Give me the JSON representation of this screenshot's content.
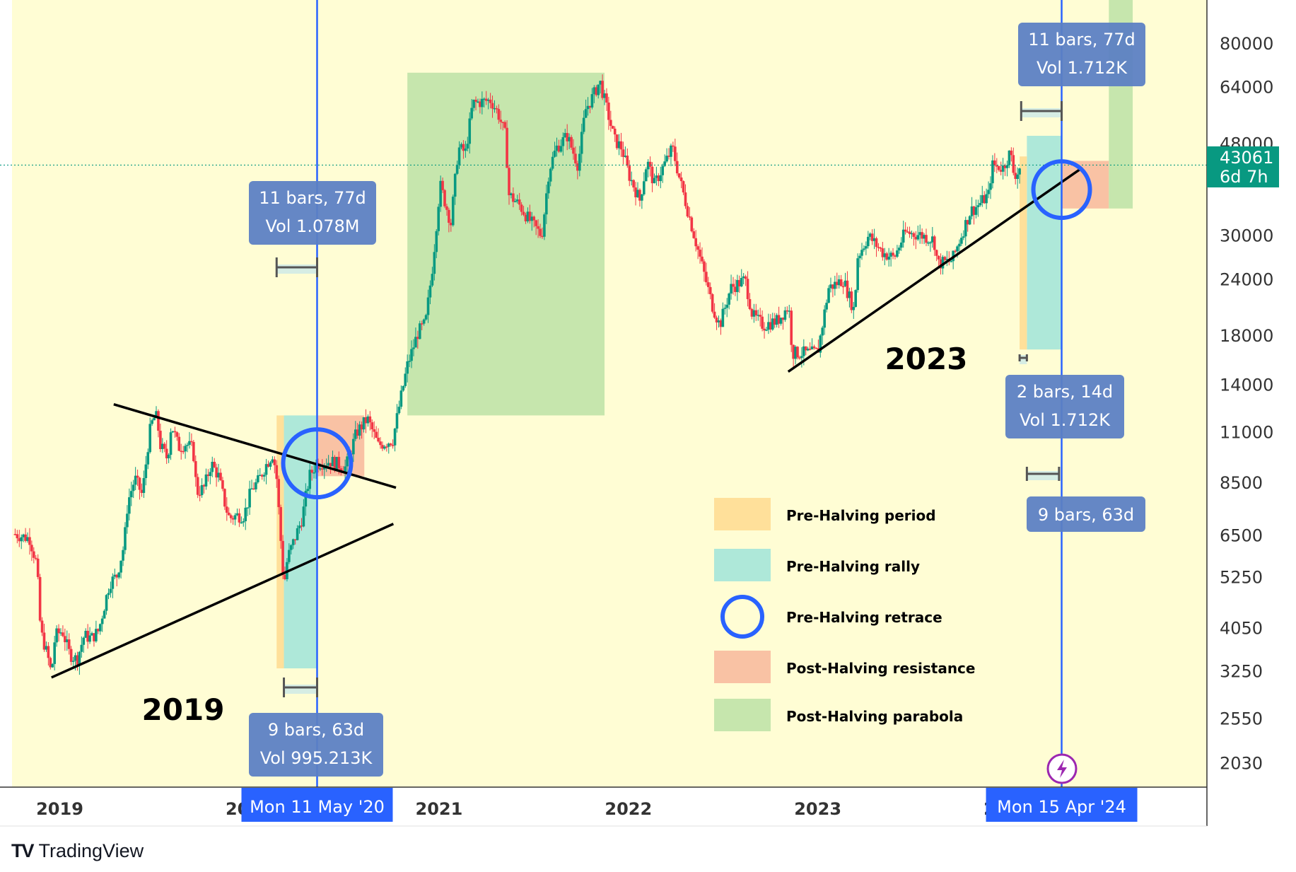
{
  "chart_data": {
    "type": "candlestick",
    "title": "",
    "subtitle": "",
    "xlabel": "",
    "ylabel": "",
    "y_scale": "log",
    "ylim": [
      1800,
      100000
    ],
    "xlim": [
      "2018-10-01",
      "2025-01-20"
    ],
    "grid": false,
    "background_color": "#fffdd4",
    "x_ticks": [
      "2019",
      "2020",
      "2021",
      "2022",
      "2023",
      "2024"
    ],
    "x_tick_dates": [
      "2019-01-01",
      "2020-01-01",
      "2021-01-01",
      "2022-01-01",
      "2023-01-01",
      "2024-01-01"
    ],
    "y_ticks": [
      2030,
      2550,
      3250,
      4050,
      5250,
      6500,
      8500,
      11000,
      14000,
      18000,
      24000,
      30000,
      48000,
      64000,
      80000
    ],
    "y_tick_labels": [
      "2030",
      "2550",
      "3250",
      "4050",
      "5250",
      "6500",
      "8500",
      "11000",
      "14000",
      "18000",
      "24000",
      "30000",
      "48000",
      "64000",
      "80000"
    ],
    "current_price": {
      "value": "43061",
      "countdown": "6d 7h",
      "color": "#089981"
    },
    "up_color": "#089981",
    "down_color": "#f23645",
    "weekly_close": [
      [
        "2018-10-07",
        6550
      ],
      [
        "2018-11-04",
        6400
      ],
      [
        "2018-11-18",
        5600
      ],
      [
        "2018-11-25",
        4000
      ],
      [
        "2018-12-09",
        3500
      ],
      [
        "2018-12-16",
        3200
      ],
      [
        "2018-12-23",
        3900
      ],
      [
        "2019-01-06",
        4000
      ],
      [
        "2019-01-20",
        3550
      ],
      [
        "2019-02-03",
        3450
      ],
      [
        "2019-02-17",
        3900
      ],
      [
        "2019-03-03",
        3850
      ],
      [
        "2019-03-17",
        4000
      ],
      [
        "2019-04-07",
        5100
      ],
      [
        "2019-04-21",
        5300
      ],
      [
        "2019-05-05",
        6200
      ],
      [
        "2019-05-12",
        7700
      ],
      [
        "2019-05-26",
        8700
      ],
      [
        "2019-06-09",
        8000
      ],
      [
        "2019-06-23",
        11000
      ],
      [
        "2019-06-30",
        11800
      ],
      [
        "2019-07-07",
        11900
      ],
      [
        "2019-07-14",
        10300
      ],
      [
        "2019-07-28",
        9600
      ],
      [
        "2019-08-04",
        11500
      ],
      [
        "2019-08-18",
        10200
      ],
      [
        "2019-09-01",
        10400
      ],
      [
        "2019-09-15",
        10100
      ],
      [
        "2019-09-22",
        8100
      ],
      [
        "2019-10-06",
        8300
      ],
      [
        "2019-10-20",
        9400
      ],
      [
        "2019-11-03",
        8800
      ],
      [
        "2019-11-17",
        7500
      ],
      [
        "2019-11-24",
        7100
      ],
      [
        "2019-12-08",
        7200
      ],
      [
        "2019-12-22",
        7200
      ],
      [
        "2020-01-05",
        8200
      ],
      [
        "2020-01-19",
        8600
      ],
      [
        "2020-02-02",
        9300
      ],
      [
        "2020-02-16",
        9900
      ],
      [
        "2020-02-23",
        8700
      ],
      [
        "2020-03-08",
        5000
      ],
      [
        "2020-03-15",
        5800
      ],
      [
        "2020-03-29",
        6400
      ],
      [
        "2020-04-12",
        7100
      ],
      [
        "2020-04-26",
        8800
      ],
      [
        "2020-05-10",
        9400
      ],
      [
        "2020-06-07",
        9500
      ],
      [
        "2020-07-05",
        9200
      ],
      [
        "2020-07-26",
        11000
      ],
      [
        "2020-08-16",
        11800
      ],
      [
        "2020-09-06",
        10300
      ],
      [
        "2020-10-04",
        10600
      ],
      [
        "2020-10-18",
        12900
      ],
      [
        "2020-11-01",
        15500
      ],
      [
        "2020-11-22",
        18400
      ],
      [
        "2020-12-06",
        19200
      ],
      [
        "2020-12-20",
        26000
      ],
      [
        "2021-01-03",
        39000
      ],
      [
        "2021-01-24",
        32000
      ],
      [
        "2021-02-07",
        47000
      ],
      [
        "2021-02-21",
        46000
      ],
      [
        "2021-03-07",
        59000
      ],
      [
        "2021-04-11",
        60000
      ],
      [
        "2021-04-25",
        56000
      ],
      [
        "2021-05-09",
        50000
      ],
      [
        "2021-05-16",
        37000
      ],
      [
        "2021-06-06",
        35000
      ],
      [
        "2021-06-20",
        33000
      ],
      [
        "2021-07-18",
        30000
      ],
      [
        "2021-08-01",
        42000
      ],
      [
        "2021-08-15",
        47000
      ],
      [
        "2021-09-05",
        50000
      ],
      [
        "2021-09-26",
        43000
      ],
      [
        "2021-10-10",
        57000
      ],
      [
        "2021-10-24",
        61000
      ],
      [
        "2021-11-07",
        66000
      ],
      [
        "2021-11-21",
        57000
      ],
      [
        "2021-12-05",
        49000
      ],
      [
        "2021-12-19",
        47000
      ],
      [
        "2022-01-02",
        41000
      ],
      [
        "2022-01-23",
        36000
      ],
      [
        "2022-02-06",
        44000
      ],
      [
        "2022-02-20",
        39000
      ],
      [
        "2022-03-27",
        47000
      ],
      [
        "2022-04-10",
        40000
      ],
      [
        "2022-05-08",
        30000
      ],
      [
        "2022-06-12",
        21000
      ],
      [
        "2022-06-26",
        19000
      ],
      [
        "2022-07-17",
        23000
      ],
      [
        "2022-08-14",
        24000
      ],
      [
        "2022-08-28",
        20000
      ],
      [
        "2022-09-18",
        19000
      ],
      [
        "2022-10-16",
        19500
      ],
      [
        "2022-11-06",
        21000
      ],
      [
        "2022-11-13",
        16500
      ],
      [
        "2022-12-18",
        16500
      ],
      [
        "2023-01-01",
        16600
      ],
      [
        "2023-01-22",
        23000
      ],
      [
        "2023-02-19",
        24000
      ],
      [
        "2023-03-12",
        20500
      ],
      [
        "2023-03-19",
        27000
      ],
      [
        "2023-04-09",
        30000
      ],
      [
        "2023-05-07",
        27500
      ],
      [
        "2023-05-28",
        26800
      ],
      [
        "2023-06-18",
        30500
      ],
      [
        "2023-07-16",
        30200
      ],
      [
        "2023-08-13",
        29400
      ],
      [
        "2023-08-20",
        26000
      ],
      [
        "2023-09-17",
        26500
      ],
      [
        "2023-10-22",
        34000
      ],
      [
        "2023-11-05",
        35000
      ],
      [
        "2023-11-26",
        37000
      ],
      [
        "2023-12-03",
        43000
      ],
      [
        "2023-12-24",
        42500
      ],
      [
        "2024-01-07",
        46000
      ],
      [
        "2024-01-14",
        41000
      ],
      [
        "2024-01-21",
        41500
      ],
      [
        "2024-01-28",
        43061
      ]
    ],
    "annotations": {
      "labels_2019": {
        "year": "2019",
        "measure_top": {
          "line1": "11 bars, 77d",
          "line2": "Vol 1.078M"
        },
        "measure_bottom": {
          "line1": "9 bars, 63d",
          "line2": "Vol 995.213K"
        }
      },
      "labels_2023": {
        "year": "2023",
        "measure_top": {
          "line1": "11 bars, 77d",
          "line2": "Vol 1.712K"
        },
        "measure_mid": {
          "line1": "2 bars, 14d",
          "line2": "Vol 1.712K"
        },
        "measure_bottom": {
          "line1": "9 bars, 63d"
        }
      },
      "halving_markers": [
        {
          "date": "2020-05-11",
          "label": "Mon 11 May '20"
        },
        {
          "date": "2024-04-15",
          "label": "Mon 15 Apr '24"
        }
      ],
      "zones": {
        "green_parabola": {
          "x": [
            "2020-11-01",
            "2021-11-16"
          ],
          "y": [
            12000,
            69000
          ],
          "color": "#c6e6ad"
        },
        "pink_2020": {
          "x": [
            "2020-05-11",
            "2020-08-10"
          ],
          "y": [
            8800,
            12000
          ],
          "color": "#f9c2a4"
        },
        "teal_2020": {
          "x": [
            "2020-03-08",
            "2020-05-11"
          ],
          "y": [
            3300,
            12000
          ],
          "color": "#aee8d9"
        },
        "orange_2020": {
          "x": [
            "2020-02-23",
            "2020-03-08"
          ],
          "y": [
            3300,
            12000
          ],
          "color": "#ffe09a"
        },
        "teal_2024": {
          "x": [
            "2024-02-08",
            "2024-04-15"
          ],
          "y": [
            16800,
            50000
          ],
          "color": "#aee8d9"
        },
        "orange_2024": {
          "x": [
            "2024-01-25",
            "2024-02-08"
          ],
          "y": [
            16800,
            45000
          ],
          "color": "#ffe09a"
        },
        "pink_2024": {
          "x": [
            "2024-04-15",
            "2024-07-15"
          ],
          "y": [
            34500,
            44000
          ],
          "color": "#f9c2a4"
        },
        "green_2024": {
          "x": [
            "2024-07-15",
            "2024-08-30"
          ],
          "y": [
            34500,
            100000
          ],
          "color": "#c6e6ad"
        }
      }
    },
    "legend": [
      {
        "label": "Pre-Halving period",
        "color": "#ffe09a",
        "shape": "rect"
      },
      {
        "label": "Pre-Halving rally",
        "color": "#aee8d9",
        "shape": "rect"
      },
      {
        "label": "Pre-Halving retrace",
        "color": "#2962ff",
        "shape": "circle"
      },
      {
        "label": "Post-Halving resistance",
        "color": "#f9c2a4",
        "shape": "rect"
      },
      {
        "label": "Post-Halving parabola",
        "color": "#c6e6ad",
        "shape": "rect"
      }
    ],
    "halving_line_color": "#2962ff",
    "trendline_color": "#000000"
  },
  "brand": {
    "name": "TradingView",
    "logo_icon": "tradingview-logo-icon"
  },
  "bolt_icon": "lightning-bolt-icon"
}
